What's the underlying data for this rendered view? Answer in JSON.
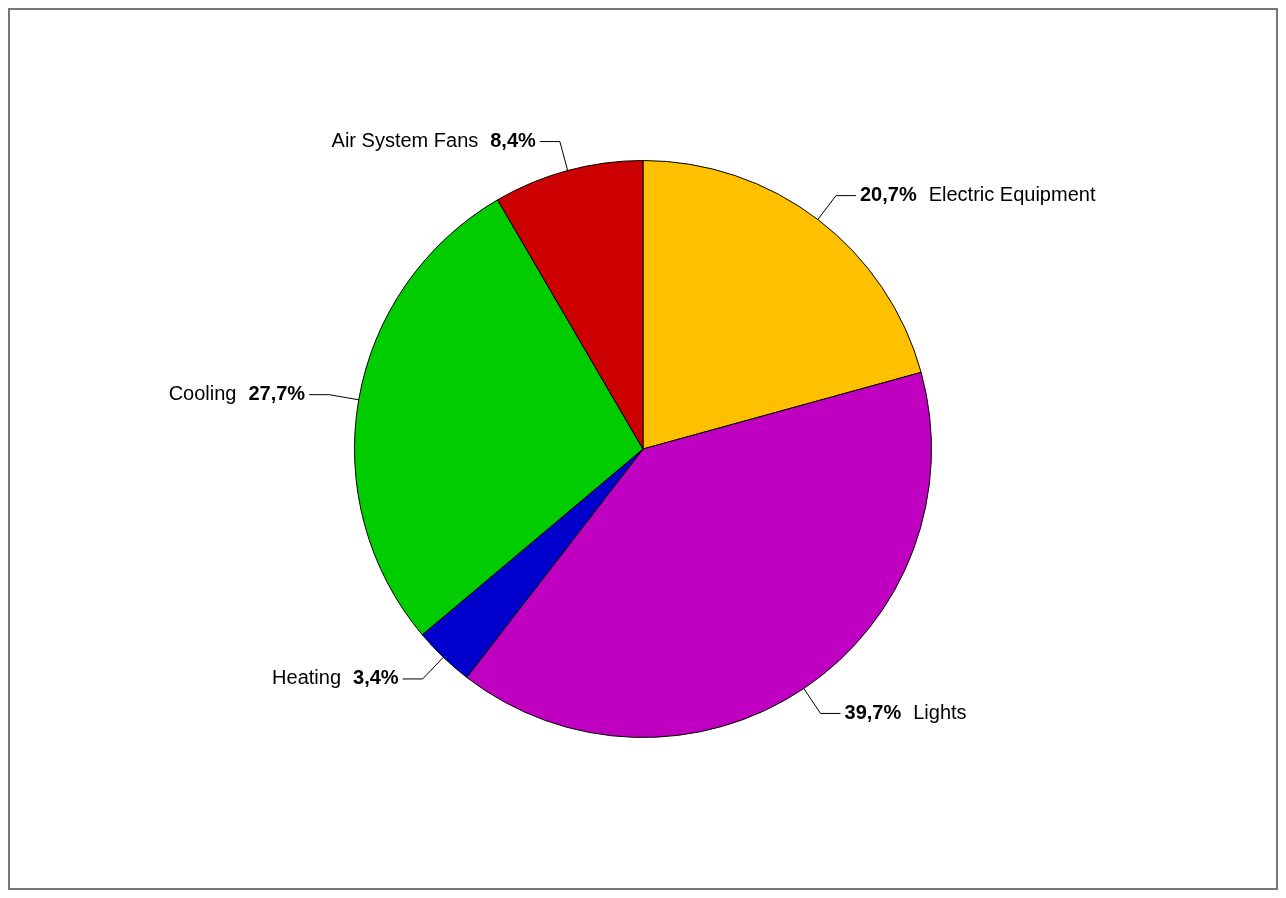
{
  "chart_data": {
    "type": "pie",
    "categories": [
      "Electric Equipment",
      "Lights",
      "Heating",
      "Cooling",
      "Air System Fans"
    ],
    "values": [
      20.7,
      39.7,
      3.4,
      27.7,
      8.4
    ],
    "value_labels": [
      "20,7%",
      "39,7%",
      "3,4%",
      "27,7%",
      "8,4%"
    ],
    "colors": [
      "#ffc000",
      "#c000c0",
      "#0000cc",
      "#00cc00",
      "#cc0000"
    ],
    "legend": false
  }
}
